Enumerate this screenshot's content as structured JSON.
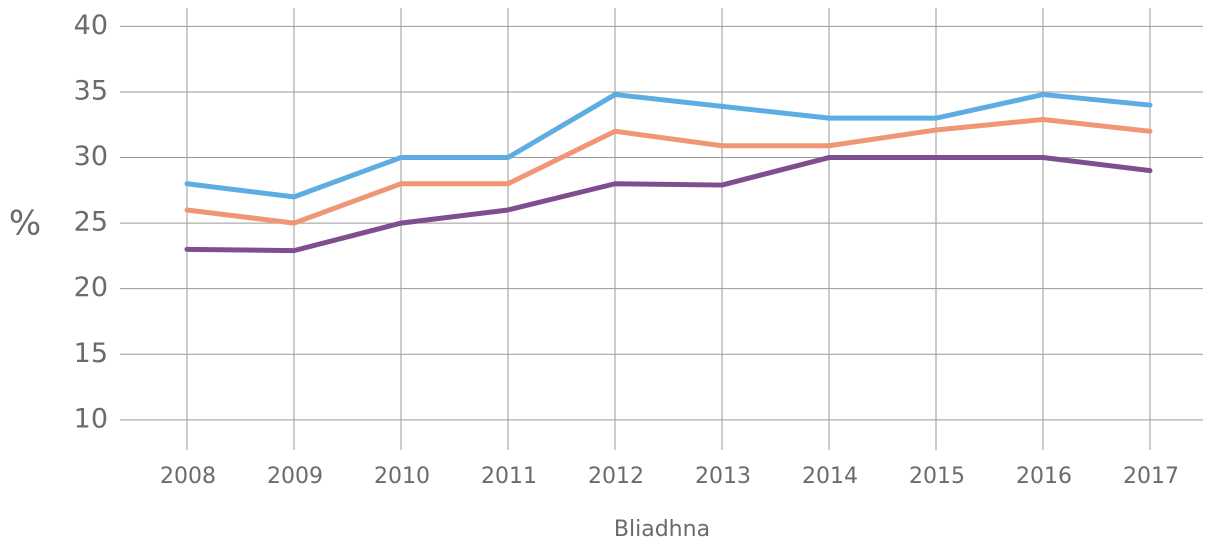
{
  "chart_data": {
    "type": "line",
    "xlabel": "Bliadhna",
    "ylabel": "%",
    "categories": [
      "2008",
      "2009",
      "2010",
      "2011",
      "2012",
      "2013",
      "2014",
      "2015",
      "2016",
      "2017"
    ],
    "series": [
      {
        "color": "#5dade2",
        "values": [
          28,
          27,
          30,
          30,
          34.8,
          33.9,
          33,
          33,
          34.8,
          34
        ]
      },
      {
        "color": "#ef9676",
        "values": [
          26,
          25,
          28,
          28,
          32,
          30.9,
          30.9,
          32.1,
          32.9,
          32
        ]
      },
      {
        "color": "#7e4f8e",
        "values": [
          23,
          22.9,
          25,
          26,
          28,
          27.9,
          30,
          30,
          30,
          29
        ]
      }
    ],
    "ylim": [
      7.7,
      41.4
    ],
    "yticks": [
      10,
      15,
      20,
      25,
      30,
      35,
      40
    ],
    "grid": true
  }
}
